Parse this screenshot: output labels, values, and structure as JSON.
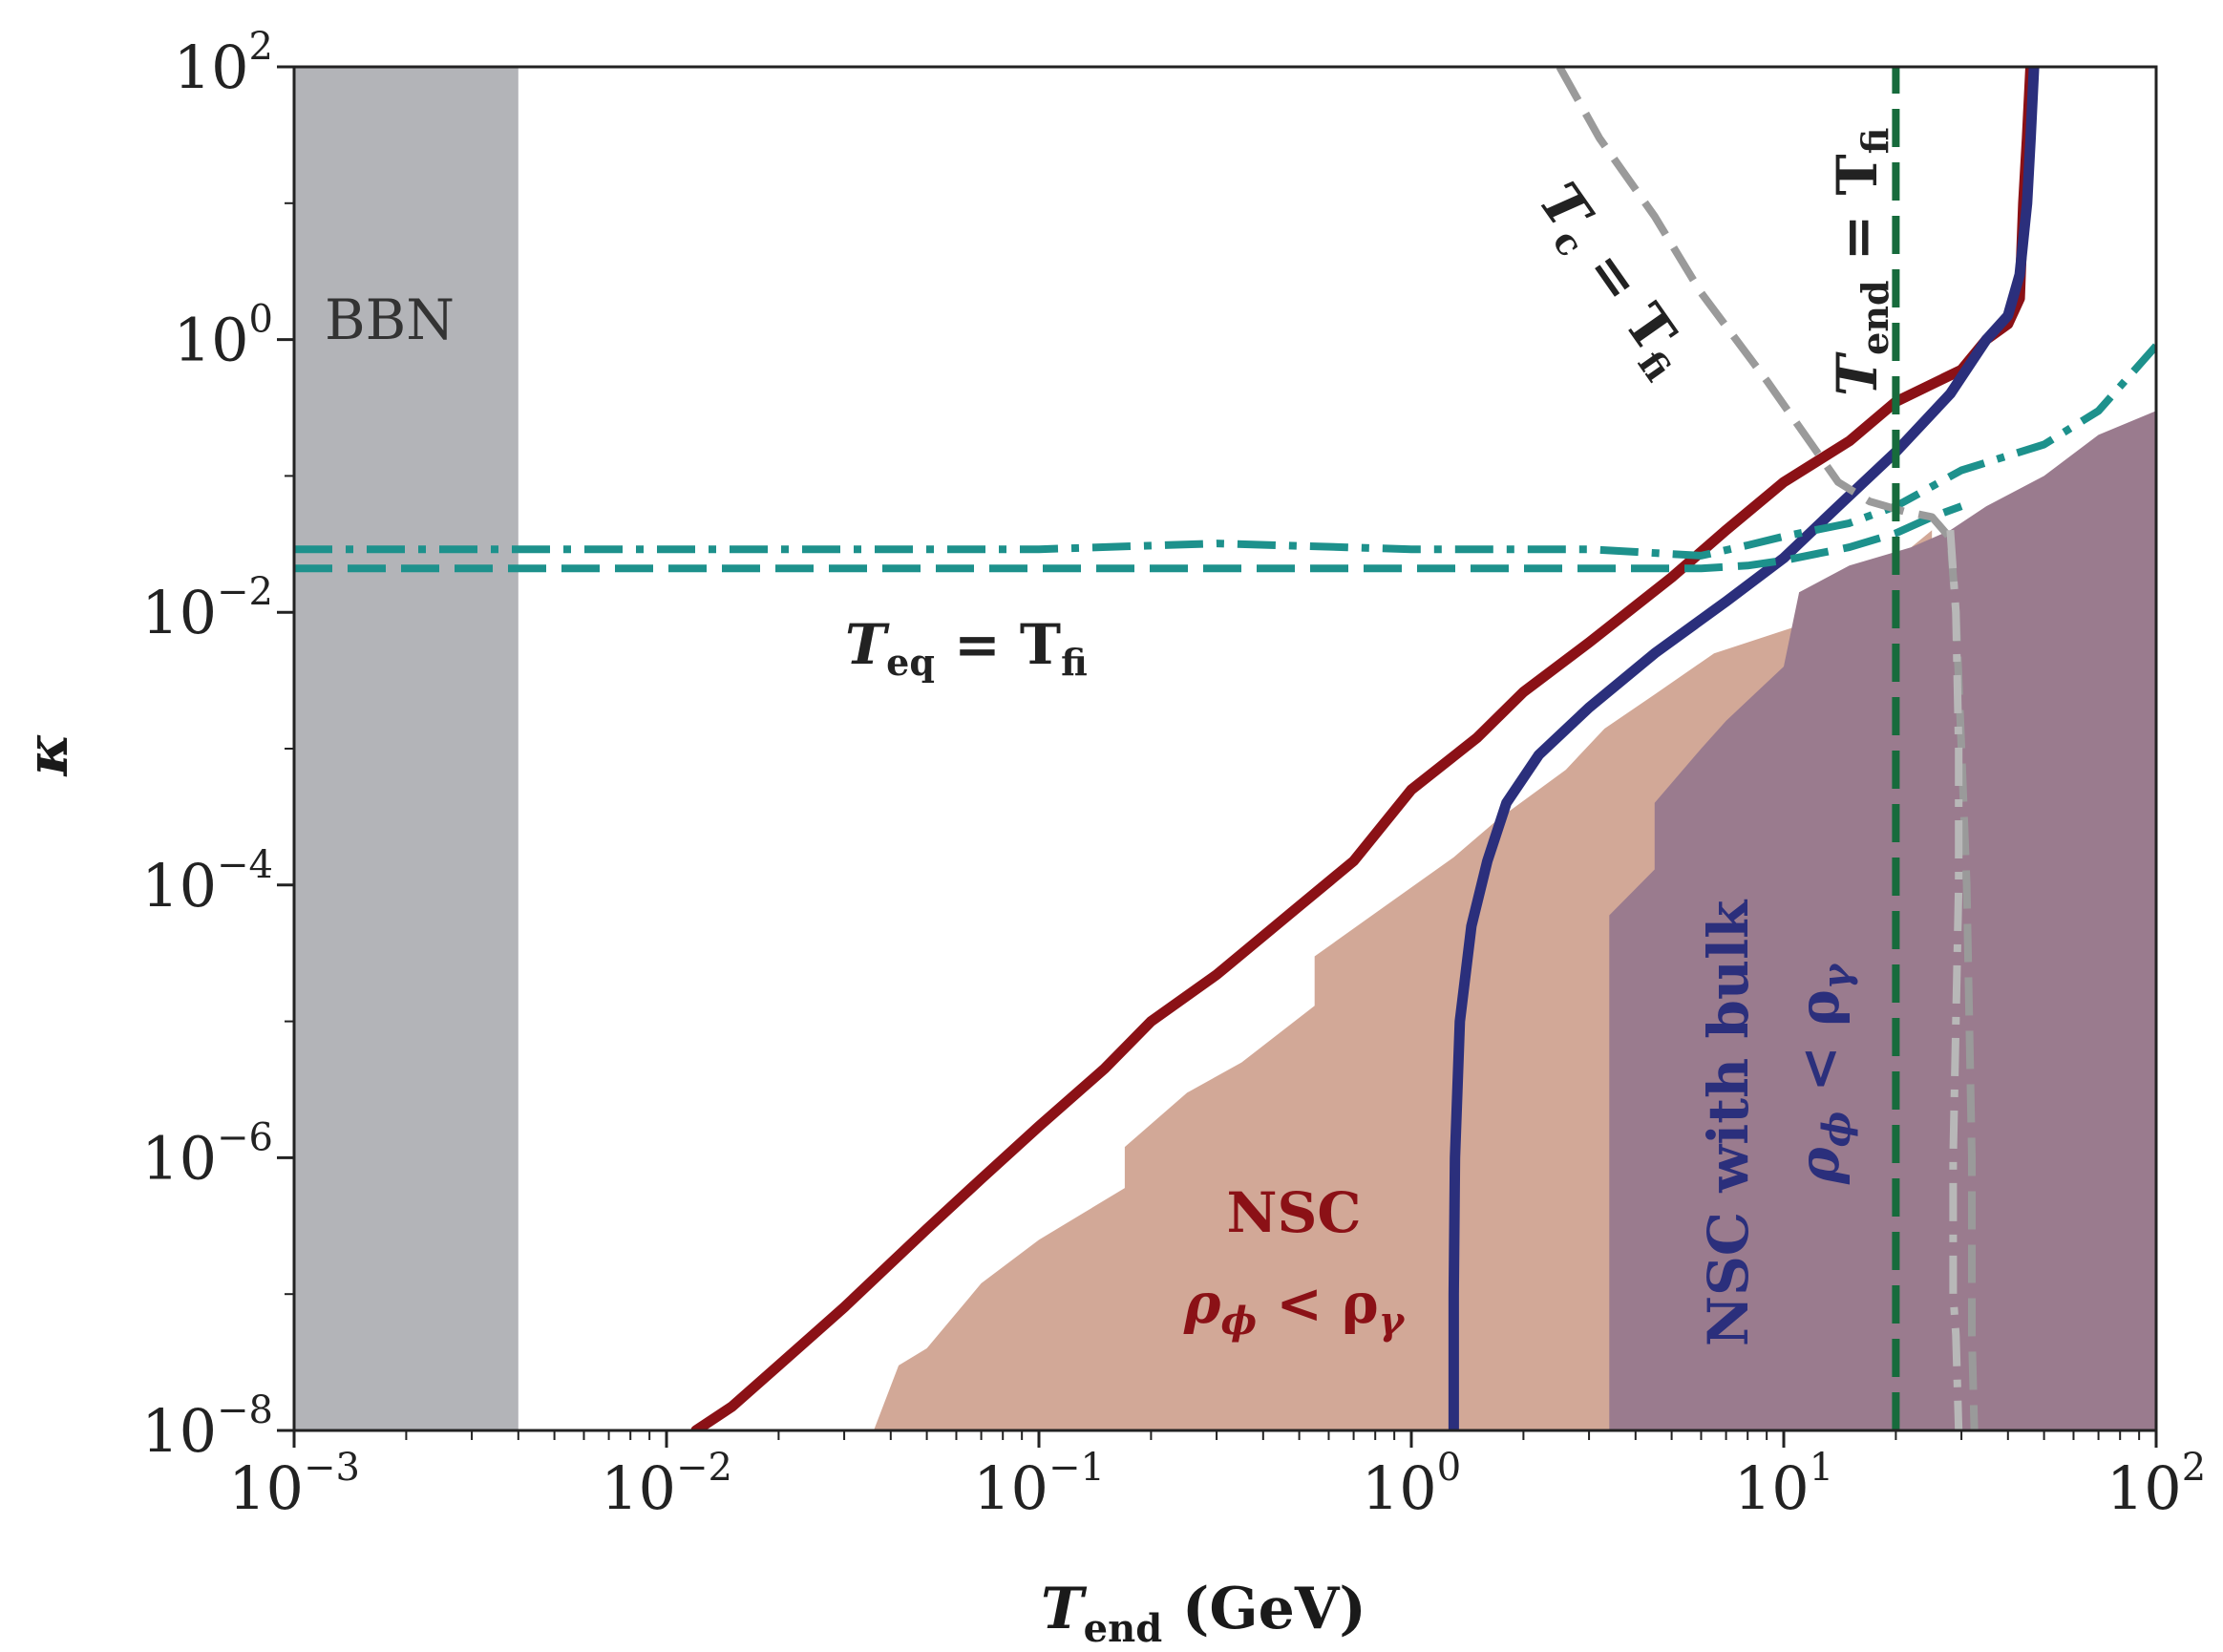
{
  "chart_data": {
    "type": "line",
    "title": "",
    "x_scale": "log",
    "y_scale": "log",
    "xlim": [
      0.001,
      100
    ],
    "ylim": [
      1e-08,
      100
    ],
    "xlabel": "T_end (GeV)",
    "ylabel": "κ",
    "x_ticks": [
      {
        "value": 0.001,
        "base": "10",
        "exp": "−3"
      },
      {
        "value": 0.01,
        "base": "10",
        "exp": "−2"
      },
      {
        "value": 0.1,
        "base": "10",
        "exp": "−1"
      },
      {
        "value": 1,
        "base": "10",
        "exp": "0"
      },
      {
        "value": 10,
        "base": "10",
        "exp": "1"
      },
      {
        "value": 100,
        "base": "10",
        "exp": "2"
      }
    ],
    "y_ticks": [
      {
        "value": 1e-08,
        "base": "10",
        "exp": "−8"
      },
      {
        "value": 1e-06,
        "base": "10",
        "exp": "−6"
      },
      {
        "value": 0.0001,
        "base": "10",
        "exp": "−4"
      },
      {
        "value": 0.01,
        "base": "10",
        "exp": "−2"
      },
      {
        "value": 1,
        "base": "10",
        "exp": "0"
      },
      {
        "value": 100,
        "base": "10",
        "exp": "2"
      }
    ],
    "regions": [
      {
        "name": "BBN",
        "label": "BBN",
        "color": "#b3b4b8",
        "x_range": [
          0.001,
          0.004
        ]
      },
      {
        "name": "nsc-region",
        "label_line1": "NSC",
        "label_line2_main": "ρ",
        "label_line2_sub1": "ϕ",
        "label_line2_op": " < ρ",
        "label_line2_sub2": "γ",
        "color": "#d2a897",
        "boundary": [
          [
            0.03,
            1e-08
          ],
          [
            0.036,
            1e-08
          ],
          [
            0.042,
            3e-08
          ],
          [
            0.05,
            4e-08
          ],
          [
            0.07,
            1.2e-07
          ],
          [
            0.1,
            2.5e-07
          ],
          [
            0.17,
            6e-07
          ],
          [
            0.17,
            1.2e-06
          ],
          [
            0.25,
            3e-06
          ],
          [
            0.35,
            5e-06
          ],
          [
            0.55,
            1.3e-05
          ],
          [
            0.55,
            3e-05
          ],
          [
            0.85,
            7e-05
          ],
          [
            1.3,
            0.00016
          ],
          [
            1.7,
            0.0003
          ],
          [
            2.6,
            0.0007
          ],
          [
            3.3,
            0.0014
          ],
          [
            4.5,
            0.0025
          ],
          [
            6.5,
            0.005
          ],
          [
            11,
            0.008
          ],
          [
            11,
            0.014
          ],
          [
            16,
            0.02
          ],
          [
            22,
            0.03
          ],
          [
            25,
            0.04
          ],
          [
            25,
            1e-08
          ]
        ]
      },
      {
        "name": "nsc-bulk-region",
        "label_line1": "NSC with bulk",
        "label_line2_main": "ρ",
        "label_line2_sub1": "ϕ",
        "label_line2_op": " < ρ",
        "label_line2_sub2": "γ",
        "color": "#9a7b8e",
        "boundary": [
          [
            3.4,
            1e-08
          ],
          [
            3.4,
            6e-05
          ],
          [
            4.5,
            0.00013
          ],
          [
            4.5,
            0.0004
          ],
          [
            6,
            0.001
          ],
          [
            7,
            0.0016
          ],
          [
            10,
            0.004
          ],
          [
            11,
            0.014
          ],
          [
            15,
            0.022
          ],
          [
            22,
            0.03
          ],
          [
            28,
            0.04
          ],
          [
            35,
            0.06
          ],
          [
            50,
            0.1
          ],
          [
            70,
            0.2
          ],
          [
            100,
            0.3
          ],
          [
            100,
            1e-08
          ]
        ]
      }
    ],
    "series": [
      {
        "name": "red-boundary",
        "color": "#8b1116",
        "style": "solid",
        "x": [
          0.012,
          0.015,
          0.02,
          0.03,
          0.05,
          0.07,
          0.1,
          0.15,
          0.2,
          0.3,
          0.5,
          0.7,
          1,
          1.5,
          2,
          3,
          5,
          7,
          10,
          15,
          20,
          30,
          35,
          40,
          43,
          44,
          45,
          46
        ],
        "y": [
          1e-08,
          1.5e-08,
          3e-08,
          8e-08,
          3e-07,
          7e-07,
          1.7e-06,
          4.5e-06,
          1e-05,
          2.2e-05,
          7e-05,
          0.00015,
          0.0005,
          0.0012,
          0.0026,
          0.006,
          0.018,
          0.04,
          0.09,
          0.18,
          0.35,
          0.6,
          1,
          1.3,
          2,
          10,
          30,
          100
        ]
      },
      {
        "name": "blue-boundary",
        "color": "#2b2f7c",
        "style": "solid",
        "x": [
          1.3,
          1.3,
          1.31,
          1.35,
          1.45,
          1.6,
          1.8,
          2.2,
          3,
          4.5,
          7,
          10,
          14,
          20,
          28,
          35,
          40,
          43,
          45,
          46,
          47
        ],
        "y": [
          1e-08,
          1e-07,
          1e-06,
          1e-05,
          5e-05,
          0.00015,
          0.0004,
          0.0009,
          0.002,
          0.005,
          0.012,
          0.025,
          0.06,
          0.15,
          0.4,
          1,
          1.5,
          3,
          10,
          30,
          100
        ]
      },
      {
        "name": "teal-dash-dot",
        "color": "#1d918c",
        "style": "dashdot",
        "x": [
          0.001,
          0.01,
          0.1,
          0.3,
          1,
          3,
          6,
          8,
          10,
          15,
          20,
          30,
          50,
          70,
          100
        ],
        "y": [
          0.029,
          0.029,
          0.029,
          0.032,
          0.029,
          0.029,
          0.026,
          0.031,
          0.036,
          0.045,
          0.06,
          0.11,
          0.17,
          0.3,
          0.9
        ]
      },
      {
        "name": "teal-dashed",
        "color": "#1d918c",
        "style": "dashed",
        "x": [
          0.001,
          0.01,
          0.1,
          0.3,
          1,
          3,
          6,
          8,
          10,
          15,
          20,
          25,
          30
        ],
        "y": [
          0.021,
          0.021,
          0.021,
          0.021,
          0.021,
          0.021,
          0.021,
          0.022,
          0.024,
          0.03,
          0.038,
          0.05,
          0.06
        ]
      },
      {
        "name": "gray-tc-line",
        "color": "#9a9a9a",
        "style": "dashed",
        "x": [
          2.5,
          3.2,
          4.5,
          6,
          9,
          14,
          17,
          21,
          25,
          28,
          29,
          30,
          31,
          31.5,
          32,
          32,
          32,
          32.5
        ],
        "y": [
          100,
          30,
          8,
          2.2,
          0.5,
          0.09,
          0.065,
          0.055,
          0.05,
          0.035,
          0.01,
          0.001,
          0.0001,
          1e-05,
          1e-06,
          1e-07,
          5e-08,
          1e-08
        ]
      },
      {
        "name": "gray-tc-dashdot",
        "color": "#b8b8b8",
        "style": "dashdot",
        "x": [
          28,
          29,
          29.5,
          29.5,
          29,
          28.5,
          28.5,
          29,
          29.5
        ],
        "y": [
          0.04,
          0.01,
          0.001,
          0.0001,
          1e-05,
          1e-06,
          1e-07,
          5e-08,
          1e-08
        ]
      },
      {
        "name": "green-tend-line",
        "color": "#176b3c",
        "style": "dashed",
        "x": [
          20,
          20,
          20,
          20
        ],
        "y": [
          1e-08,
          0.0001,
          1,
          100
        ]
      }
    ],
    "annotations": {
      "tc_main": "T",
      "tc_sub": "c",
      "tc_rest": " = T",
      "tc_sub2": "fi",
      "tend_main": "T",
      "tend_sub": "end",
      "tend_rest": " = T",
      "tend_sub2": "fi",
      "teq_main": "T",
      "teq_sub": "eq",
      "teq_rest": " = T",
      "teq_sub2": "fi"
    },
    "xlabel_main": "T",
    "xlabel_sub": "end",
    "xlabel_rest": " (GeV)",
    "ylabel_sym": "κ"
  }
}
